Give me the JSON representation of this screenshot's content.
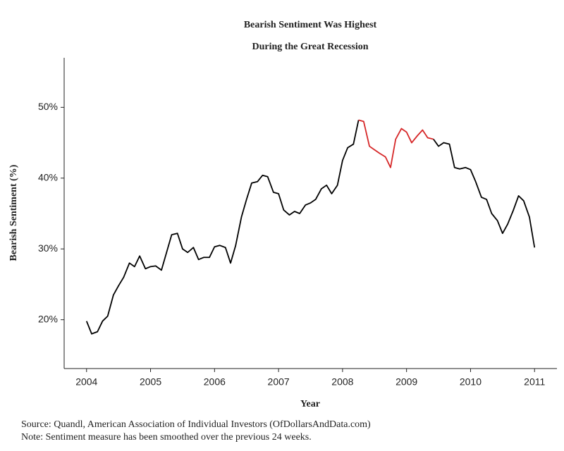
{
  "chart_data": {
    "type": "line",
    "title": "Bearish Sentiment Was Highest During the Great Recession",
    "x_label": "Year",
    "y_label": "Bearish Sentiment (%)",
    "source": "Source:  Quandl, American Association of Individual Investors (OfDollarsAndData.com)",
    "note": "Note:  Sentiment measure has been smoothed over the previous 24 weeks.",
    "x": [
      2004.0,
      2004.08,
      2004.17,
      2004.25,
      2004.33,
      2004.42,
      2004.5,
      2004.58,
      2004.67,
      2004.75,
      2004.83,
      2004.92,
      2005.0,
      2005.08,
      2005.17,
      2005.25,
      2005.33,
      2005.42,
      2005.5,
      2005.58,
      2005.67,
      2005.75,
      2005.83,
      2005.92,
      2006.0,
      2006.08,
      2006.17,
      2006.25,
      2006.33,
      2006.42,
      2006.5,
      2006.58,
      2006.67,
      2006.75,
      2006.83,
      2006.92,
      2007.0,
      2007.08,
      2007.17,
      2007.25,
      2007.33,
      2007.42,
      2007.5,
      2007.58,
      2007.67,
      2007.75,
      2007.83,
      2007.92,
      2008.0,
      2008.08,
      2008.17,
      2008.25,
      2008.33,
      2008.42,
      2008.5,
      2008.58,
      2008.67,
      2008.75,
      2008.83,
      2008.92,
      2009.0,
      2009.08,
      2009.17,
      2009.25,
      2009.33,
      2009.42,
      2009.5,
      2009.58,
      2009.67,
      2009.75,
      2009.83,
      2009.92,
      2010.0,
      2010.08,
      2010.17,
      2010.25,
      2010.33,
      2010.42,
      2010.5,
      2010.58,
      2010.67,
      2010.75,
      2010.83,
      2010.92,
      2011.0
    ],
    "series": [
      {
        "color": "#000000",
        "values": [
          19.8,
          18.0,
          18.3,
          19.8,
          20.5,
          23.5,
          24.8,
          26.0,
          28.0,
          27.5,
          29.0,
          27.2,
          27.5,
          27.6,
          27.0,
          29.5,
          32.0,
          32.2,
          30.0,
          29.5,
          30.2,
          28.5,
          28.8,
          28.8,
          30.3,
          30.5,
          30.2,
          28.0,
          30.5,
          34.5,
          37.0,
          39.3,
          39.5,
          40.4,
          40.2,
          38.0,
          37.8,
          35.5,
          34.8,
          35.3,
          35.0,
          36.2,
          36.5,
          37.0,
          38.5,
          39.0,
          37.8,
          39.0,
          42.5,
          44.3,
          44.8,
          48.2,
          null,
          null,
          null,
          null,
          null,
          null,
          null,
          null,
          null,
          null,
          null,
          null,
          null,
          45.5,
          44.5,
          45.0,
          44.8,
          41.5,
          41.3,
          41.5,
          41.2,
          39.5,
          37.3,
          37.0,
          35.0,
          34.0,
          32.2,
          33.5,
          35.5,
          37.5,
          36.8,
          34.5,
          30.2
        ]
      },
      {
        "color": "#d62728",
        "values": [
          null,
          null,
          null,
          null,
          null,
          null,
          null,
          null,
          null,
          null,
          null,
          null,
          null,
          null,
          null,
          null,
          null,
          null,
          null,
          null,
          null,
          null,
          null,
          null,
          null,
          null,
          null,
          null,
          null,
          null,
          null,
          null,
          null,
          null,
          null,
          null,
          null,
          null,
          null,
          null,
          null,
          null,
          null,
          null,
          null,
          null,
          null,
          null,
          null,
          null,
          null,
          48.2,
          48.0,
          44.5,
          44.0,
          43.5,
          43.0,
          41.5,
          45.5,
          47.0,
          46.5,
          45.0,
          46.0,
          46.8,
          45.7,
          45.5,
          null,
          null,
          null,
          null,
          null,
          null,
          null,
          null,
          null,
          null,
          null,
          null,
          null,
          null,
          null,
          null,
          null,
          null,
          null
        ]
      }
    ],
    "xlim": [
      2003.65,
      2011.35
    ],
    "xticks": [
      2004,
      2005,
      2006,
      2007,
      2008,
      2009,
      2010,
      2011
    ],
    "ylim": [
      13.1,
      57
    ],
    "yticks": [
      {
        "value": 20,
        "label": "20%"
      },
      {
        "value": 30,
        "label": "30%"
      },
      {
        "value": 40,
        "label": "40%"
      },
      {
        "value": 50,
        "label": "50%"
      }
    ],
    "grid": false
  }
}
